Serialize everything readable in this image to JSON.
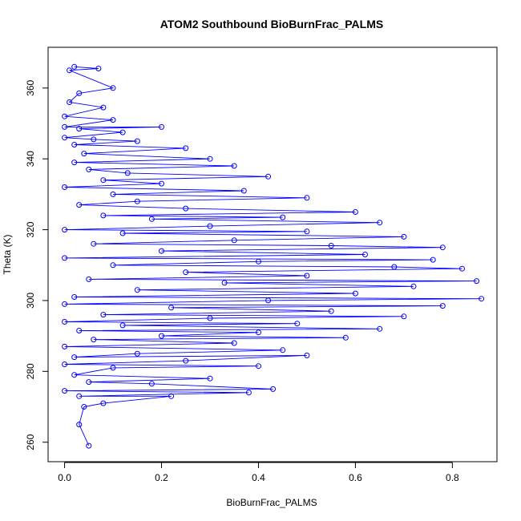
{
  "chart_data": {
    "type": "line",
    "title": "ATOM2 Southbound BioBurnFrac_PALMS",
    "xlabel": "BioBurnFrac_PALMS",
    "ylabel": "Theta (K)",
    "xlim": [
      -0.034,
      0.892
    ],
    "ylim": [
      254.5,
      371.5
    ],
    "xticks": [
      0.0,
      0.2,
      0.4,
      0.6,
      0.8
    ],
    "xtick_labels": [
      "0.0",
      "0.2",
      "0.4",
      "0.6",
      "0.8"
    ],
    "yticks": [
      260,
      280,
      300,
      320,
      340,
      360
    ],
    "ytick_labels": [
      "260",
      "280",
      "300",
      "320",
      "340",
      "360"
    ],
    "grid": false,
    "series": [
      {
        "name": "",
        "color": "#0000ff",
        "marker": "open-circle",
        "points": [
          [
            0.02,
            366
          ],
          [
            0.07,
            365.5
          ],
          [
            0.01,
            365
          ],
          [
            0.1,
            360
          ],
          [
            0.03,
            358.5
          ],
          [
            0.01,
            356
          ],
          [
            0.08,
            354.5
          ],
          [
            0.0,
            352
          ],
          [
            0.1,
            351
          ],
          [
            0.0,
            349
          ],
          [
            0.2,
            349
          ],
          [
            0.03,
            348.5
          ],
          [
            0.12,
            347.5
          ],
          [
            0.0,
            346
          ],
          [
            0.06,
            345.5
          ],
          [
            0.15,
            345
          ],
          [
            0.02,
            344
          ],
          [
            0.25,
            343
          ],
          [
            0.04,
            341.5
          ],
          [
            0.3,
            340
          ],
          [
            0.02,
            339
          ],
          [
            0.35,
            338
          ],
          [
            0.05,
            337
          ],
          [
            0.13,
            336
          ],
          [
            0.42,
            335
          ],
          [
            0.08,
            334
          ],
          [
            0.2,
            333
          ],
          [
            0.0,
            332
          ],
          [
            0.37,
            331
          ],
          [
            0.1,
            330
          ],
          [
            0.5,
            329
          ],
          [
            0.15,
            328
          ],
          [
            0.03,
            327
          ],
          [
            0.25,
            326
          ],
          [
            0.6,
            325
          ],
          [
            0.08,
            324
          ],
          [
            0.45,
            323.5
          ],
          [
            0.18,
            323
          ],
          [
            0.65,
            322
          ],
          [
            0.3,
            321
          ],
          [
            0.0,
            320
          ],
          [
            0.5,
            319.5
          ],
          [
            0.12,
            319
          ],
          [
            0.7,
            318
          ],
          [
            0.35,
            317
          ],
          [
            0.06,
            316
          ],
          [
            0.55,
            315.5
          ],
          [
            0.78,
            315
          ],
          [
            0.2,
            314
          ],
          [
            0.62,
            313
          ],
          [
            0.0,
            312
          ],
          [
            0.76,
            311.5
          ],
          [
            0.4,
            311
          ],
          [
            0.1,
            310
          ],
          [
            0.68,
            309.5
          ],
          [
            0.82,
            309
          ],
          [
            0.25,
            308
          ],
          [
            0.5,
            307
          ],
          [
            0.05,
            306
          ],
          [
            0.85,
            305.5
          ],
          [
            0.33,
            305
          ],
          [
            0.72,
            304
          ],
          [
            0.15,
            303
          ],
          [
            0.6,
            302
          ],
          [
            0.02,
            301
          ],
          [
            0.86,
            300.5
          ],
          [
            0.42,
            300
          ],
          [
            0.0,
            299
          ],
          [
            0.78,
            298.5
          ],
          [
            0.22,
            298
          ],
          [
            0.55,
            297
          ],
          [
            0.08,
            296
          ],
          [
            0.7,
            295.5
          ],
          [
            0.3,
            295
          ],
          [
            0.0,
            294
          ],
          [
            0.48,
            293.5
          ],
          [
            0.12,
            293
          ],
          [
            0.65,
            292
          ],
          [
            0.03,
            291.5
          ],
          [
            0.4,
            291
          ],
          [
            0.2,
            290
          ],
          [
            0.58,
            289.5
          ],
          [
            0.06,
            289
          ],
          [
            0.35,
            288
          ],
          [
            0.0,
            287
          ],
          [
            0.45,
            286
          ],
          [
            0.15,
            285
          ],
          [
            0.02,
            284
          ],
          [
            0.5,
            284.5
          ],
          [
            0.25,
            283
          ],
          [
            0.0,
            282
          ],
          [
            0.4,
            281.5
          ],
          [
            0.1,
            281
          ],
          [
            0.02,
            279
          ],
          [
            0.3,
            278
          ],
          [
            0.05,
            277
          ],
          [
            0.18,
            276.5
          ],
          [
            0.43,
            275
          ],
          [
            0.0,
            274.5
          ],
          [
            0.38,
            274
          ],
          [
            0.03,
            273
          ],
          [
            0.22,
            273
          ],
          [
            0.08,
            271
          ],
          [
            0.04,
            270
          ],
          [
            0.03,
            265
          ],
          [
            0.05,
            259
          ]
        ]
      }
    ]
  }
}
